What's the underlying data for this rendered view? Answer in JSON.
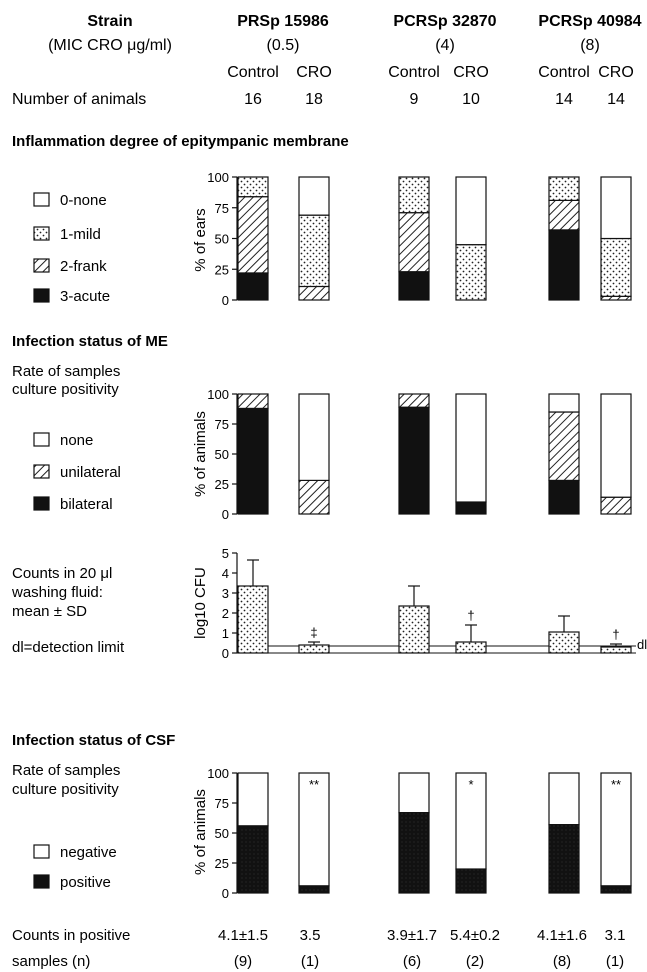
{
  "header": {
    "strain_label": "Strain",
    "mic_label": "(MIC CRO μg/ml)",
    "animals_label": "Number of animals",
    "strains": [
      {
        "name": "PRSp 15986",
        "mic": "(0.5)",
        "control": "Control",
        "cro": "CRO",
        "n_control": "16",
        "n_cro": "18"
      },
      {
        "name": "PCRSp 32870",
        "mic": "(4)",
        "control": "Control",
        "cro": "CRO",
        "n_control": "9",
        "n_cro": "10"
      },
      {
        "name": "PCRSp 40984",
        "mic": "(8)",
        "control": "Control",
        "cro": "CRO",
        "n_control": "14",
        "n_cro": "14"
      }
    ]
  },
  "chart_data": [
    {
      "type": "bar",
      "stacked": true,
      "title": "Inflammation degree of epitympanic membrane",
      "ylabel": "% of ears",
      "ylim": [
        0,
        100
      ],
      "yticks": [
        "0",
        "25",
        "50",
        "75",
        "100"
      ],
      "categories": [
        "PRSp 15986 Control",
        "PRSp 15986 CRO",
        "PCRSp 32870 Control",
        "PCRSp 32870 CRO",
        "PCRSp 40984 Control",
        "PCRSp 40984 CRO"
      ],
      "series": [
        {
          "name": "3-acute",
          "values": [
            22,
            0,
            23,
            0,
            57,
            0
          ]
        },
        {
          "name": "2-frank",
          "values": [
            62,
            11,
            48,
            0,
            24,
            3
          ]
        },
        {
          "name": "1-mild",
          "values": [
            16,
            58,
            29,
            45,
            19,
            47
          ]
        },
        {
          "name": "0-none",
          "values": [
            0,
            31,
            0,
            55,
            0,
            50
          ]
        }
      ]
    },
    {
      "type": "bar",
      "stacked": true,
      "title": "Infection status of ME",
      "subtitle": "Rate of samples culture positivity",
      "ylabel": "% of animals",
      "ylim": [
        0,
        100
      ],
      "yticks": [
        "0",
        "25",
        "50",
        "75",
        "100"
      ],
      "categories": [
        "PRSp 15986 Control",
        "PRSp 15986 CRO",
        "PCRSp 32870 Control",
        "PCRSp 32870 CRO",
        "PCRSp 40984 Control",
        "PCRSp 40984 CRO"
      ],
      "series": [
        {
          "name": "bilateral",
          "values": [
            88,
            0,
            89,
            10,
            28,
            0
          ]
        },
        {
          "name": "unilateral",
          "values": [
            12,
            28,
            11,
            0,
            57,
            14
          ]
        },
        {
          "name": "none",
          "values": [
            0,
            72,
            0,
            90,
            15,
            86
          ]
        }
      ]
    },
    {
      "type": "bar",
      "title": "Counts in 20 μl washing fluid: mean ± SD",
      "ylabel": "log10 CFU",
      "ylim": [
        0,
        5
      ],
      "yticks": [
        "0",
        "1",
        "2",
        "3",
        "4",
        "5"
      ],
      "categories": [
        "PRSp 15986 Control",
        "PRSp 15986 CRO",
        "PCRSp 32870 Control",
        "PCRSp 32870 CRO",
        "PCRSp 40984 Control",
        "PCRSp 40984 CRO"
      ],
      "values": [
        3.35,
        0.4,
        2.35,
        0.55,
        1.05,
        0.3
      ],
      "errors": [
        1.3,
        0.15,
        1.0,
        0.85,
        0.8,
        0.15
      ],
      "markers": [
        "",
        "‡",
        "",
        "†",
        "",
        "†"
      ],
      "detection_limit_value": 0.35,
      "detection_limit_label": "dl",
      "detection_limit_note": "dl=detection limit"
    },
    {
      "type": "bar",
      "stacked": true,
      "title": "Infection status of CSF",
      "subtitle": "Rate of samples culture positivity",
      "ylabel": "% of animals",
      "ylim": [
        0,
        100
      ],
      "yticks": [
        "0",
        "25",
        "50",
        "75",
        "100"
      ],
      "categories": [
        "PRSp 15986 Control",
        "PRSp 15986 CRO",
        "PCRSp 32870 Control",
        "PCRSp 32870 CRO",
        "PCRSp 40984 Control",
        "PCRSp 40984 CRO"
      ],
      "series": [
        {
          "name": "positive",
          "values": [
            56,
            6,
            67,
            20,
            57,
            6
          ]
        },
        {
          "name": "negative",
          "values": [
            44,
            94,
            33,
            80,
            43,
            94
          ]
        }
      ],
      "markers": [
        "",
        "**",
        "",
        "*",
        "",
        "**"
      ]
    }
  ],
  "csf_counts": {
    "label_line1": "Counts in positive",
    "label_line2": "samples (n)",
    "values": [
      "4.1±1.5",
      "3.5",
      "3.9±1.7",
      "5.4±0.2",
      "4.1±1.6",
      "3.1"
    ],
    "n": [
      "(9)",
      "(1)",
      "(6)",
      "(2)",
      "(8)",
      "(1)"
    ]
  }
}
